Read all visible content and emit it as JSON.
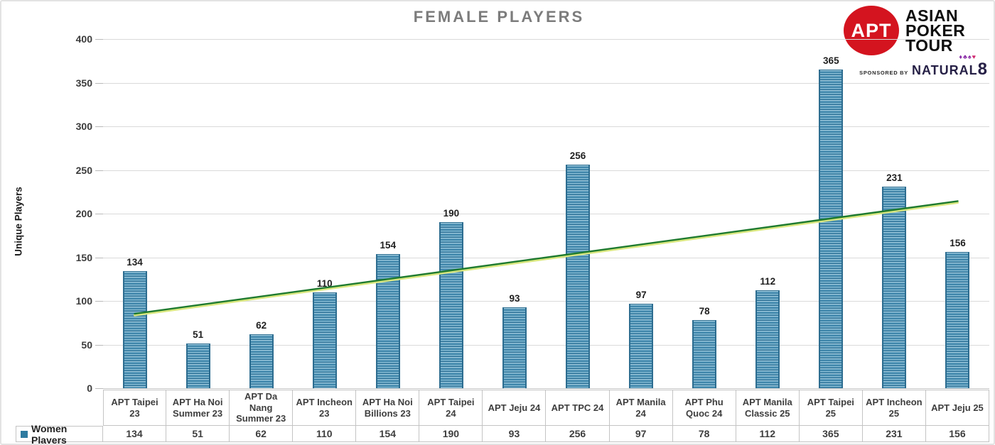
{
  "title": "FEMALE PLAYERS",
  "header_logo": {
    "apt_badge_text": "APT",
    "apt_badge_color": "#d4141f",
    "brand_line1": "ASIAN",
    "brand_line2": "POKER",
    "brand_line3": "TOUR",
    "sponsored_by": "SPONSORED BY",
    "sponsor_name": "NATURAL",
    "sponsor_name_8": "8",
    "sponsor_suits": "♦♣♠",
    "sponsor_suit_heart": "♥"
  },
  "chart_data": {
    "type": "bar",
    "title": "FEMALE PLAYERS",
    "xlabel": "",
    "ylabel": "Unique Players",
    "ylim": [
      0,
      400
    ],
    "ytick_step": 50,
    "grid": true,
    "legend_position": "bottom-table",
    "categories": [
      "APT Taipei 23",
      "APT Ha Noi Summer 23",
      "APT Da Nang Summer 23",
      "APT Incheon 23",
      "APT Ha Noi Billions 23",
      "APT Taipei 24",
      "APT Jeju 24",
      "APT TPC 24",
      "APT Manila 24",
      "APT Phu Quoc 24",
      "APT Manila Classic 25",
      "APT Taipei 25",
      "APT Incheon 25",
      "APT Jeju 25"
    ],
    "series": [
      {
        "name": "Women Players",
        "values": [
          134,
          51,
          62,
          110,
          154,
          190,
          93,
          256,
          97,
          78,
          112,
          365,
          231,
          156
        ],
        "color": "#4a8fb2",
        "legend_marker_color": "#2e7aa0"
      }
    ],
    "trendline": {
      "start_value": 85,
      "end_value": 214,
      "color": "#1e7a2f",
      "highlight_color": "#d9e77f"
    }
  }
}
